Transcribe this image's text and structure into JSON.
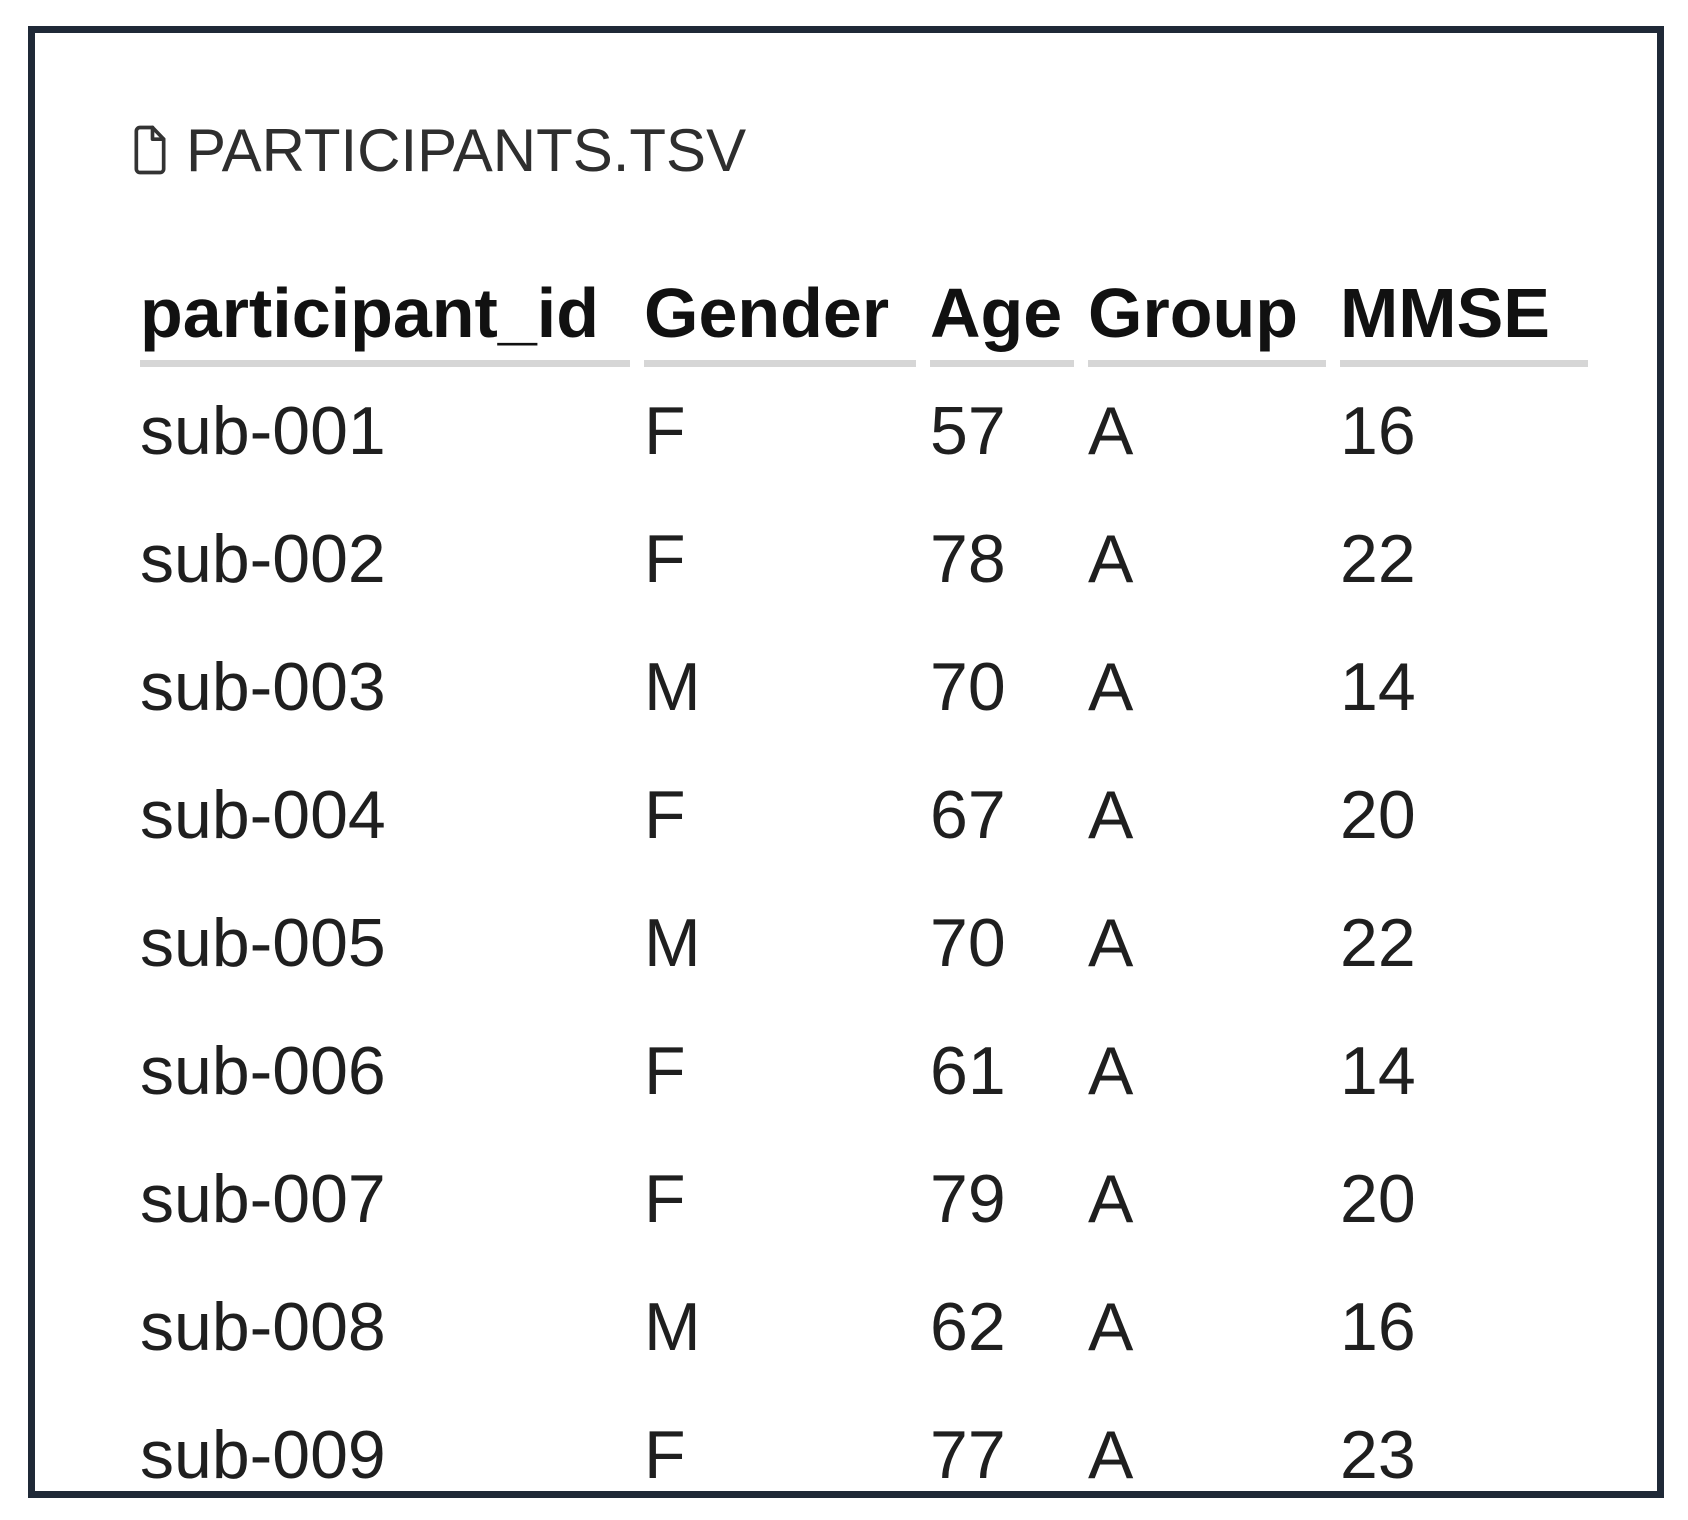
{
  "card": {
    "title": "PARTICIPANTS.TSV"
  },
  "table": {
    "columns": [
      "participant_id",
      "Gender",
      "Age",
      "Group",
      "MMSE"
    ],
    "rows": [
      [
        "sub-001",
        "F",
        "57",
        "A",
        "16"
      ],
      [
        "sub-002",
        "F",
        "78",
        "A",
        "22"
      ],
      [
        "sub-003",
        "M",
        "70",
        "A",
        "14"
      ],
      [
        "sub-004",
        "F",
        "67",
        "A",
        "20"
      ],
      [
        "sub-005",
        "M",
        "70",
        "A",
        "22"
      ],
      [
        "sub-006",
        "F",
        "61",
        "A",
        "14"
      ],
      [
        "sub-007",
        "F",
        "79",
        "A",
        "20"
      ],
      [
        "sub-008",
        "M",
        "62",
        "A",
        "16"
      ],
      [
        "sub-009",
        "F",
        "77",
        "A",
        "23"
      ]
    ]
  },
  "colors": {
    "card-border": "#1f2937",
    "title-text": "#2e2e2e",
    "header-text": "#111111",
    "cell-text": "#1f1f1f",
    "underline": "#d6d6d6",
    "background": "#ffffff",
    "icon-stroke": "#333333"
  },
  "chart_data": {
    "type": "table",
    "title": "PARTICIPANTS.TSV",
    "columns": [
      "participant_id",
      "Gender",
      "Age",
      "Group",
      "MMSE"
    ],
    "rows": [
      [
        "sub-001",
        "F",
        57,
        "A",
        16
      ],
      [
        "sub-002",
        "F",
        78,
        "A",
        22
      ],
      [
        "sub-003",
        "M",
        70,
        "A",
        14
      ],
      [
        "sub-004",
        "F",
        67,
        "A",
        20
      ],
      [
        "sub-005",
        "M",
        70,
        "A",
        22
      ],
      [
        "sub-006",
        "F",
        61,
        "A",
        14
      ],
      [
        "sub-007",
        "F",
        79,
        "A",
        20
      ],
      [
        "sub-008",
        "M",
        62,
        "A",
        16
      ],
      [
        "sub-009",
        "F",
        77,
        "A",
        23
      ]
    ]
  }
}
